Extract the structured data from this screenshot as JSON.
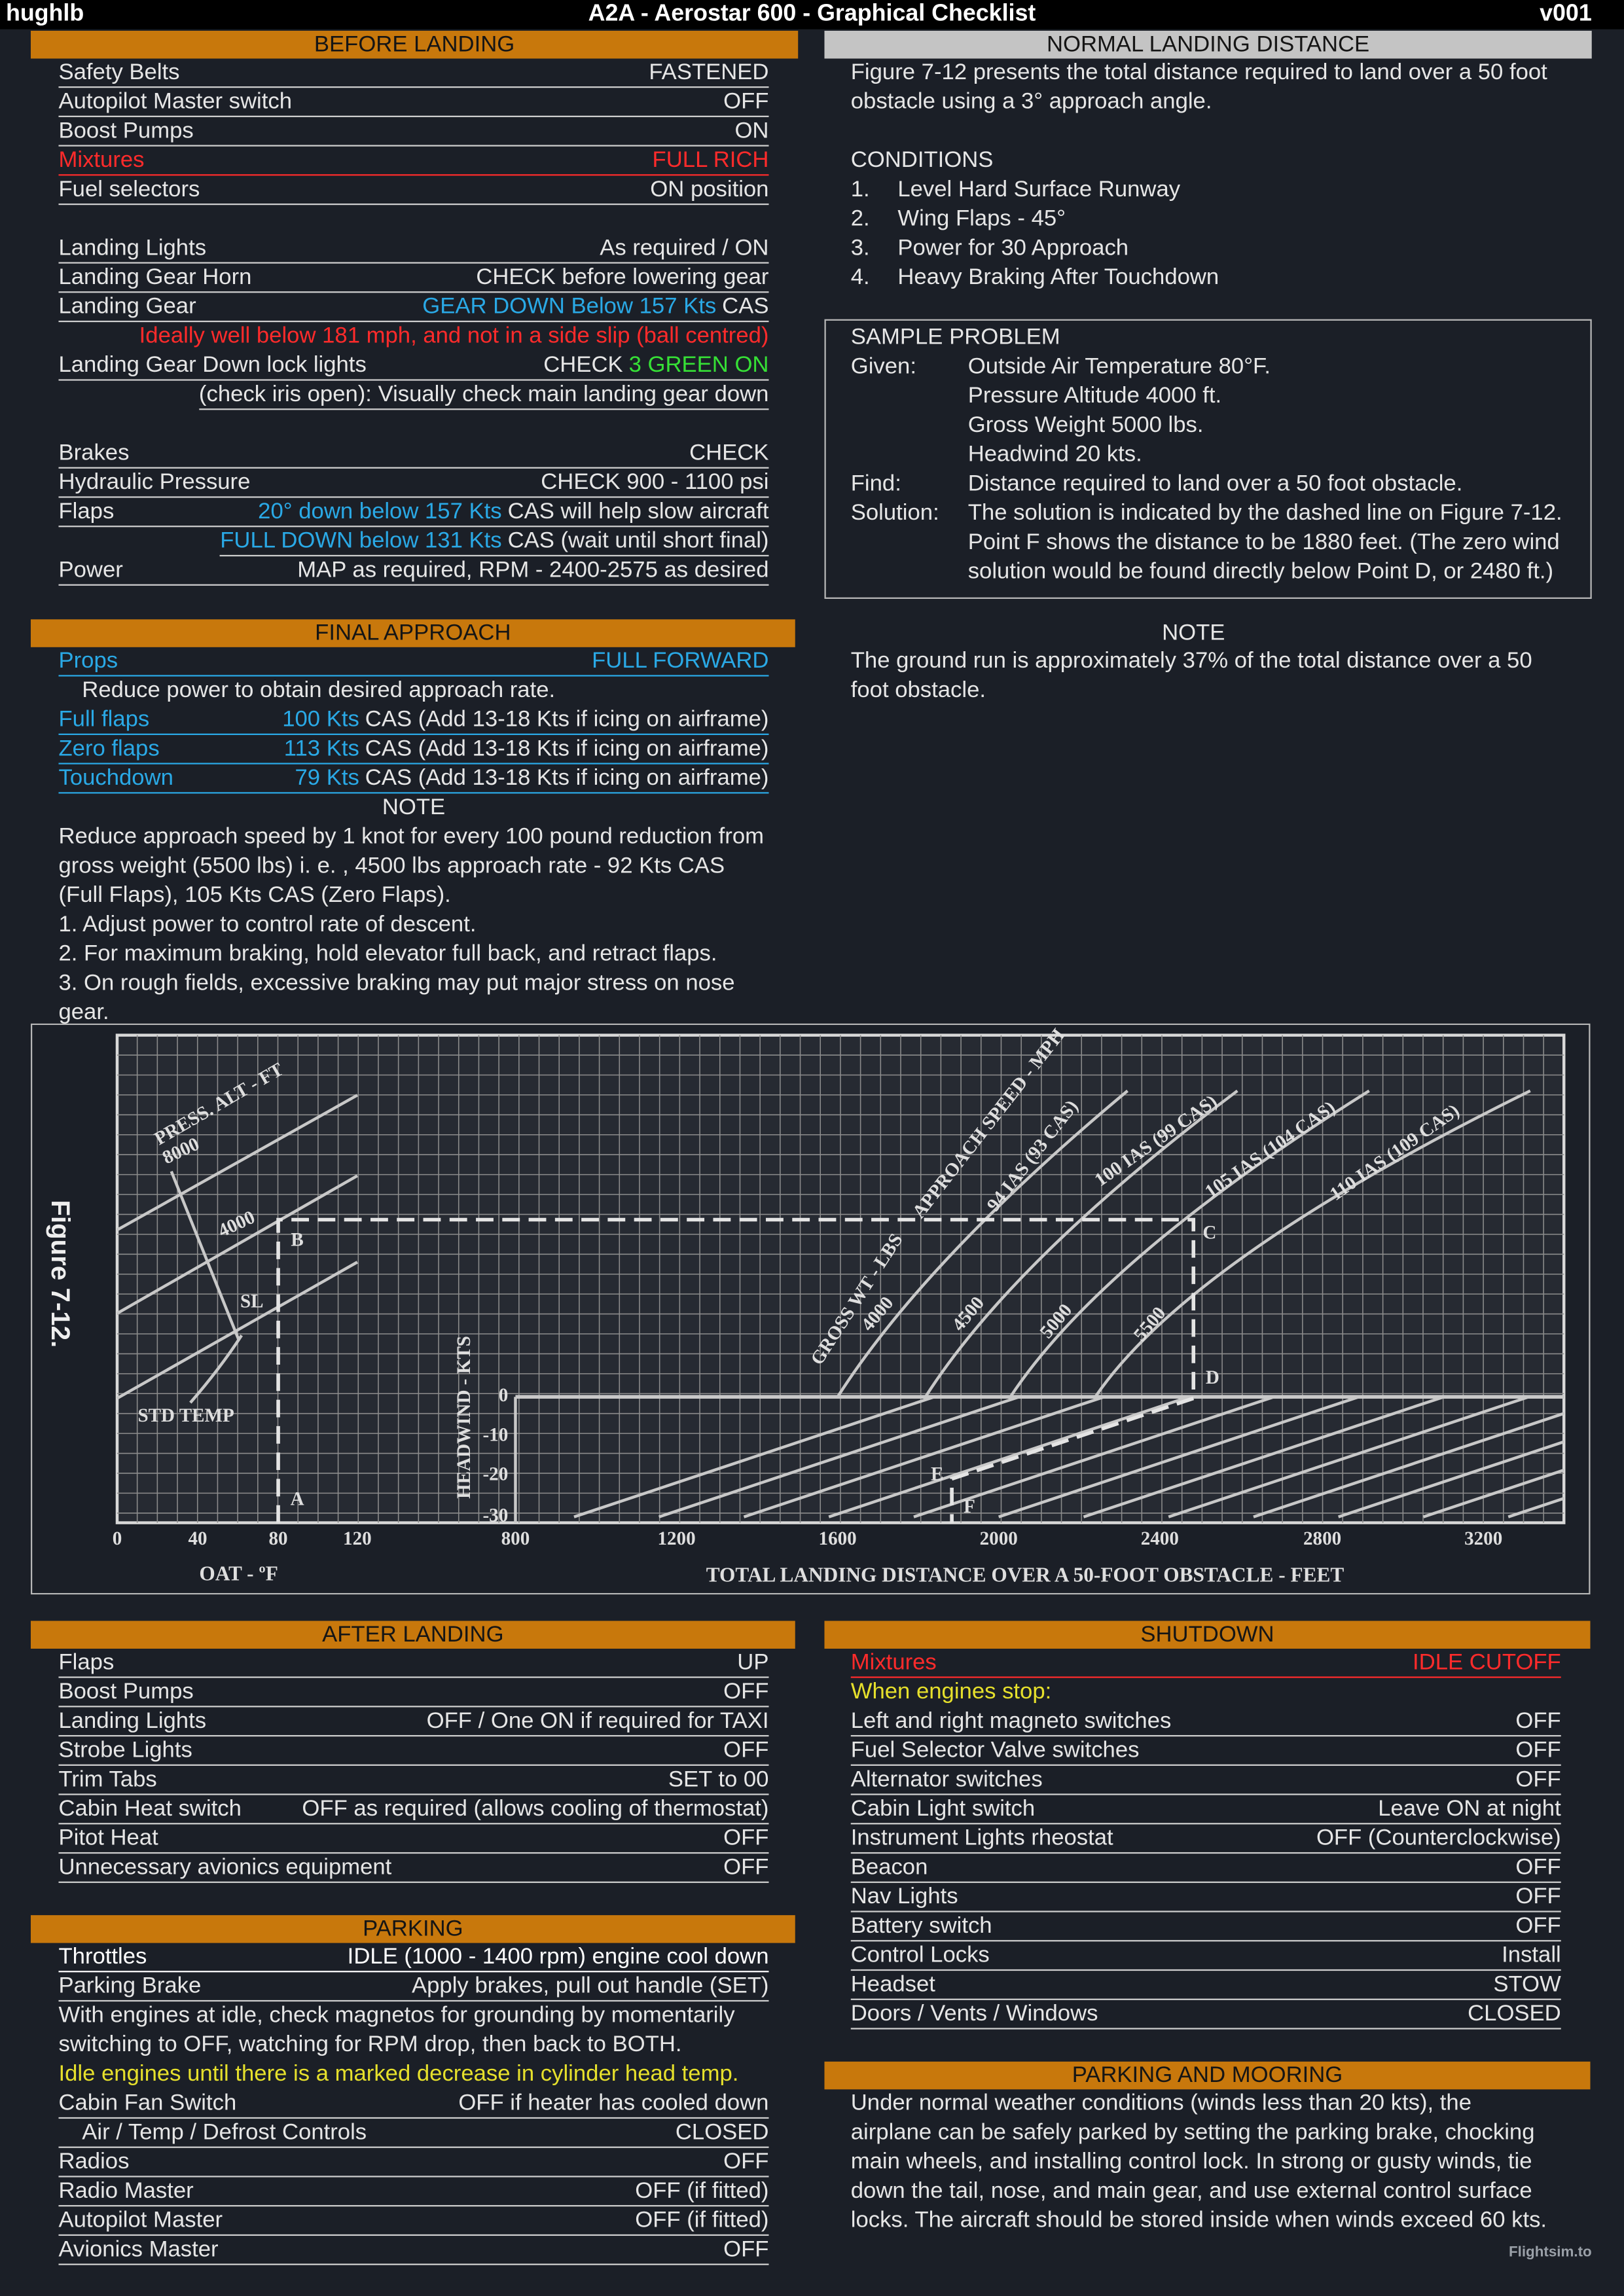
{
  "header": {
    "author": "hughlb",
    "title": "A2A - Aerostar 600 - Graphical Checklist",
    "version": "v001"
  },
  "before_landing": {
    "title": "BEFORE LANDING",
    "groups": [
      [
        {
          "item": "Safety Belts",
          "value": "FASTENED"
        },
        {
          "item": "Autopilot Master switch",
          "value": "OFF"
        },
        {
          "item": "Boost Pumps",
          "value": "ON"
        },
        {
          "item": "Mixtures",
          "value": "FULL RICH",
          "tone": "red"
        },
        {
          "item": "Fuel selectors",
          "value": "ON position"
        }
      ],
      [
        {
          "item": "Landing Lights",
          "value": "As required / ON"
        },
        {
          "item": "Landing Gear Horn",
          "value": "CHECK before lowering gear"
        },
        {
          "item": "Landing Gear",
          "value": [
            {
              "text": "GEAR DOWN Below 157 Kts",
              "tone": "blue"
            },
            {
              "text": "CAS"
            }
          ]
        },
        {
          "text": "Ideally well below 181 mph, and not in a side slip (ball centred)",
          "tone": "red",
          "align": "right"
        },
        {
          "item": "Landing Gear Down lock lights",
          "value": [
            {
              "text": "CHECK"
            },
            {
              "text": "3 GREEN ON",
              "tone": "green"
            }
          ]
        },
        {
          "value": "(check iris open): Visually check main landing gear down"
        }
      ],
      [
        {
          "item": "Brakes",
          "value": "CHECK"
        },
        {
          "item": "Hydraulic Pressure",
          "value": "CHECK 900 - 1100 psi"
        },
        {
          "item": "Flaps",
          "value": [
            {
              "text": "20° down below 157 Kts",
              "tone": "blue"
            },
            {
              "text": "CAS will help slow aircraft"
            }
          ]
        },
        {
          "value": [
            {
              "text": "FULL DOWN below 131 Kts",
              "tone": "blue"
            },
            {
              "text": "CAS (wait until short final)"
            }
          ]
        },
        {
          "item": "Power",
          "value": "MAP as required, RPM - 2400-2575 as desired"
        }
      ]
    ]
  },
  "final_approach": {
    "title": "FINAL APPROACH",
    "rows": [
      {
        "item": "Props",
        "value": "FULL FORWARD",
        "tone": "blue"
      },
      {
        "text": "Reduce power to obtain desired approach rate.",
        "indent": true
      },
      {
        "item": "Full flaps",
        "tone": "blue",
        "value": [
          {
            "text": "100 Kts",
            "tone": "blue"
          },
          {
            "text": "CAS (Add 13-18 Kts if icing on airframe)",
            "tone": "plain"
          }
        ]
      },
      {
        "item": "Zero flaps",
        "tone": "blue",
        "value": [
          {
            "text": "113 Kts",
            "tone": "blue"
          },
          {
            "text": "CAS (Add 13-18 Kts if icing on airframe)",
            "tone": "plain"
          }
        ]
      },
      {
        "item": "Touchdown",
        "tone": "blue",
        "value": [
          {
            "text": "79 Kts",
            "tone": "blue"
          },
          {
            "text": "CAS (Add 13-18 Kts if icing on airframe)",
            "tone": "plain"
          }
        ]
      },
      {
        "text": "NOTE",
        "align": "center"
      },
      {
        "text": "Reduce approach speed by 1 knot for every 100 pound reduction from gross weight (5500 lbs) i. e. , 4500 lbs approach rate - 92 Kts CAS (Full Flaps), 105 Kts CAS (Zero Flaps)."
      },
      {
        "text": "1.  Adjust power to control rate of descent."
      },
      {
        "text": "2.  For maximum braking, hold elevator full back, and retract flaps."
      },
      {
        "text": "3.  On rough fields, excessive braking may put major stress on nose gear."
      }
    ]
  },
  "normal_landing_distance": {
    "title": "NORMAL LANDING DISTANCE",
    "intro": "Figure 7-12 presents the total distance required to land over a 50 foot obstacle using a 3° approach angle.",
    "conditions_title": "CONDITIONS",
    "conditions": [
      {
        "number": "1.",
        "text": "Level Hard Surface Runway"
      },
      {
        "number": "2.",
        "text": "Wing Flaps - 45°"
      },
      {
        "number": "3.",
        "text": "Power for 30 Approach"
      },
      {
        "number": "4.",
        "text": "Heavy Braking After Touchdown"
      }
    ],
    "sample_problem": {
      "title": "SAMPLE PROBLEM",
      "entries": [
        {
          "label": "Given:",
          "lines": [
            "Outside Air Temperature 80°F.",
            "Pressure Altitude 4000 ft.",
            "Gross Weight 5000 lbs.",
            "Headwind 20 kts."
          ]
        },
        {
          "label": "Find:",
          "lines": [
            "Distance required to land over a 50 foot obstacle."
          ]
        },
        {
          "label": "Solution:",
          "lines": [
            "The solution is indicated by the dashed line on Figure 7-12.",
            "Point F shows the distance to be 1880 feet. (The zero wind",
            "solution would be found directly below Point D, or 2480 ft.)"
          ]
        }
      ]
    },
    "note_title": "NOTE",
    "note": "The ground run is approximately 37% of the total distance over a 50 foot obstacle."
  },
  "figure": {
    "caption": "Figure 7-12.",
    "pressure_altitude_title": "PRESS. ALT - FT",
    "pressure_altitudes": [
      "8000",
      "4000",
      "SL"
    ],
    "std_temp": "STD TEMP",
    "oat_ticks": [
      "0",
      "40",
      "80",
      "120"
    ],
    "oat_axis_title": "OAT - ºF",
    "headwind_title": "HEADWIND - KTS",
    "headwind_ticks": [
      "0",
      "-10",
      "-20",
      "-30"
    ],
    "distance_ticks": [
      "800",
      "1200",
      "1600",
      "2000",
      "2400",
      "2800",
      "3200"
    ],
    "distance_axis_title": "TOTAL LANDING DISTANCE OVER A 50-FOOT OBSTACLE - FEET",
    "gross_weight_title": "GROSS WT - LBS",
    "gross_weights": [
      "4000",
      "4500",
      "5000",
      "5500"
    ],
    "approach_speed_title": "APPROACH SPEED - MPH",
    "approach_speeds": [
      "94 IAS (93 CAS)",
      "100 IAS (99 CAS)",
      "105 IAS (104 CAS)",
      "110 IAS (109 CAS)"
    ],
    "points": [
      "A",
      "B",
      "C",
      "D",
      "E",
      "F"
    ]
  },
  "after_landing": {
    "title": "AFTER LANDING",
    "rows": [
      {
        "item": "Flaps",
        "value": "UP"
      },
      {
        "item": "Boost Pumps",
        "value": "OFF"
      },
      {
        "item": "Landing Lights",
        "value": "OFF / One ON if required for TAXI"
      },
      {
        "item": "Strobe Lights",
        "value": "OFF"
      },
      {
        "item": "Trim Tabs",
        "value": "SET to 00"
      },
      {
        "item": "Cabin Heat switch",
        "value": "OFF as required (allows cooling of thermostat)"
      },
      {
        "item": "Pitot Heat",
        "value": "OFF"
      },
      {
        "item": "Unnecessary avionics equipment",
        "value": "OFF"
      }
    ]
  },
  "parking": {
    "title": "PARKING",
    "rows": [
      {
        "item": "Throttles",
        "value": "IDLE (1000 - 1400 rpm) engine cool down",
        "tone": "white"
      },
      {
        "item": "Parking Brake",
        "value": "Apply brakes, pull out handle (SET)"
      },
      {
        "text": "With engines at idle, check magnetos for grounding by momentarily switching to OFF, watching for RPM drop, then back to BOTH."
      },
      {
        "text": "Idle engines until there is a marked decrease in cylinder head temp.",
        "tone": "yellow"
      },
      {
        "item": "Cabin Fan Switch",
        "value": "OFF if heater has cooled down"
      },
      {
        "item": "Air / Temp / Defrost Controls",
        "value": "CLOSED",
        "indent": true
      },
      {
        "item": "Radios",
        "value": "OFF"
      },
      {
        "item": "Radio Master",
        "value": "OFF (if fitted)"
      },
      {
        "item": "Autopilot Master",
        "value": "OFF (if fitted)"
      },
      {
        "item": "Avionics Master",
        "value": "OFF"
      }
    ]
  },
  "shutdown": {
    "title": "SHUTDOWN",
    "rows": [
      {
        "item": "Mixtures",
        "value": "IDLE CUTOFF",
        "tone": "red"
      },
      {
        "text": "When engines stop:",
        "tone": "yellow"
      },
      {
        "item": "Left and right magneto switches",
        "value": "OFF"
      },
      {
        "item": "Fuel Selector Valve switches",
        "value": "OFF"
      },
      {
        "item": "Alternator switches",
        "value": "OFF"
      },
      {
        "item": "Cabin Light switch",
        "value": "Leave ON at night"
      },
      {
        "item": "Instrument Lights rheostat",
        "value": "OFF (Counterclockwise)"
      },
      {
        "item": "Beacon",
        "value": "OFF"
      },
      {
        "item": "Nav Lights",
        "value": "OFF"
      },
      {
        "item": "Battery switch",
        "value": "OFF"
      },
      {
        "item": "Control Locks",
        "value": "Install"
      },
      {
        "item": "Headset",
        "value": "STOW"
      },
      {
        "item": "Doors / Vents / Windows",
        "value": "CLOSED"
      }
    ]
  },
  "parking_and_mooring": {
    "title": "PARKING AND MOORING",
    "text": "Under normal weather conditions (winds less than 20 kts), the airplane can be safely parked by setting the parking brake, chocking main wheels, and installing control lock. In strong or gusty winds, tie down the tail, nose, and main gear, and use external control surface locks. The aircraft should be stored inside when winds exceed 60 kts."
  },
  "watermark": "Flightsim.to"
}
